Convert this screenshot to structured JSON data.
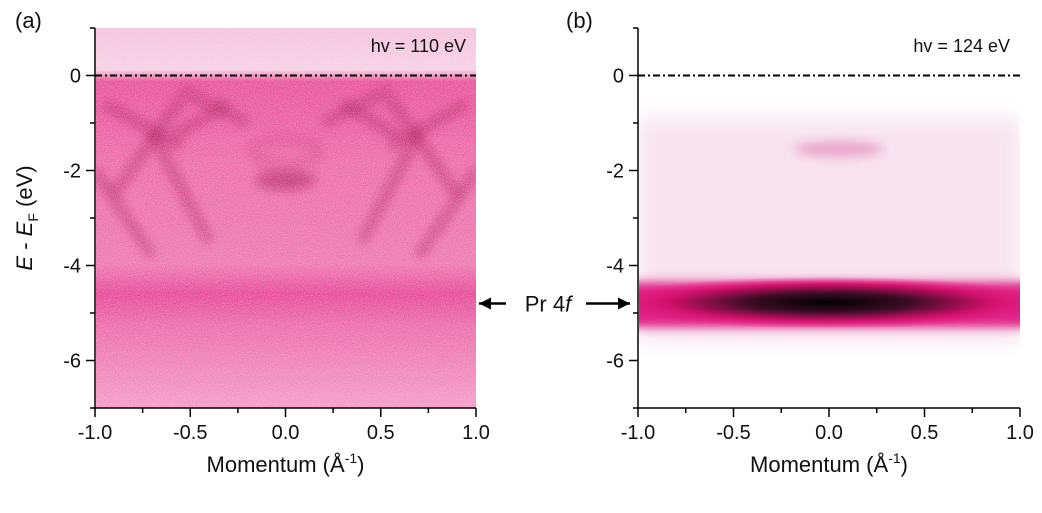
{
  "chart_data": [
    {
      "type": "image",
      "panel_label": "(a)",
      "annotation": "hv = 110 eV",
      "x_label": [
        "Momentum (Å",
        "-1",
        ")"
      ],
      "y_label": [
        "E",
        " - ",
        "E",
        "F",
        " (eV)"
      ],
      "xlim": [
        -1,
        1
      ],
      "ylim": [
        -7,
        1
      ],
      "xticks": [
        {
          "value": -1,
          "label": "-1.0"
        },
        {
          "value": -0.5,
          "label": "-0.5"
        },
        {
          "value": 0,
          "label": "0.0"
        },
        {
          "value": 0.5,
          "label": "0.5"
        },
        {
          "value": 1,
          "label": "1.0"
        }
      ],
      "xminor_ticks": [
        -0.75,
        -0.25,
        0.25,
        0.75
      ],
      "yticks": [
        -6,
        -4,
        -2,
        0
      ],
      "yminor_ticks": [
        -7,
        -5,
        -3,
        -1,
        1
      ],
      "reference_line": 0
    },
    {
      "type": "image",
      "panel_label": "(b)",
      "annotation": "hv = 124 eV",
      "x_label": [
        "Momentum (Å",
        "-1",
        ")"
      ],
      "xlim": [
        -1,
        1
      ],
      "ylim": [
        -7,
        1
      ],
      "xticks": [
        {
          "value": -1,
          "label": "-1.0"
        },
        {
          "value": -0.5,
          "label": "-0.5"
        },
        {
          "value": 0,
          "label": "0.0"
        },
        {
          "value": 0.5,
          "label": "0.5"
        },
        {
          "value": 1,
          "label": "1.0"
        }
      ],
      "xminor_ticks": [
        -0.75,
        -0.25,
        0.25,
        0.75
      ],
      "yticks": [
        -6,
        -4,
        -2,
        0
      ],
      "yminor_ticks": [
        -7,
        -5,
        -3,
        -1,
        1
      ],
      "reference_line": 0
    }
  ],
  "level_annotation": {
    "text": [
      "Pr 4",
      "f"
    ],
    "value": -4.8
  }
}
